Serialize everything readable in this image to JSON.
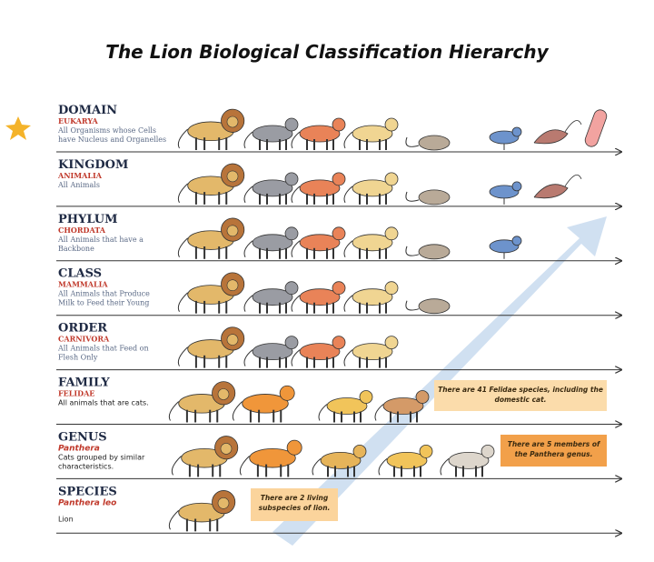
{
  "title": "The Lion Biological Classification Hierarchy",
  "rows": [
    {
      "rank": "DOMAIN",
      "taxon": "EUKARYA",
      "description": [
        "All Organisms whose Cells",
        "have Nucleus and Organelles"
      ]
    },
    {
      "rank": "KINGDOM",
      "taxon": "ANIMALIA",
      "description": [
        "All Animals"
      ]
    },
    {
      "rank": "PHYLUM",
      "taxon": "CHORDATA",
      "description": [
        "All Animals that have a",
        "Backbone"
      ]
    },
    {
      "rank": "CLASS",
      "taxon": "MAMMALIA",
      "description": [
        "All Animals that Produce",
        "Milk to Feed their Young"
      ]
    },
    {
      "rank": "ORDER",
      "taxon": "CARNIVORA",
      "description": [
        "All Animals that Feed on",
        "Flesh Only"
      ]
    },
    {
      "rank": "FAMILY",
      "taxon": "FELIDAE",
      "description": [
        "All animals that are cats."
      ],
      "note": [
        "There are 41 Felidae species, including the",
        "domestic cat."
      ]
    },
    {
      "rank": "GENUS",
      "taxon": "Panthera",
      "description": [
        "Cats grouped by similar",
        "characteristics."
      ],
      "note": [
        "There are 5 members of",
        "the Panthera genus."
      ]
    },
    {
      "rank": "SPECIES",
      "taxon": "Panthera leo",
      "description": [
        "Lion"
      ],
      "note": [
        "There are 2 living",
        "subspecies of lion."
      ]
    }
  ]
}
